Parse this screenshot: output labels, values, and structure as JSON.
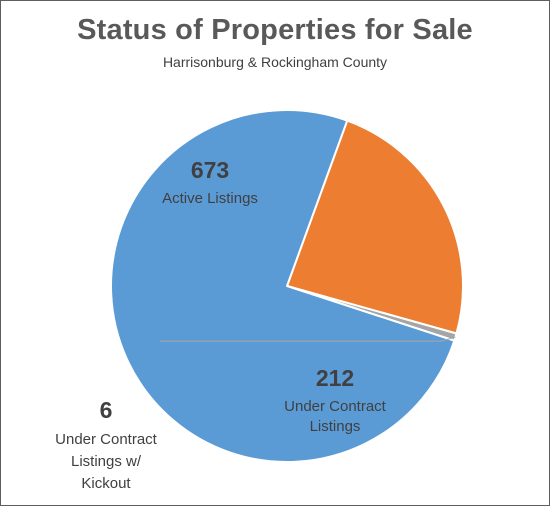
{
  "chart_data": {
    "type": "pie",
    "title": "Status of Properties for Sale",
    "subtitle": "Harrisonburg & Rockingham County",
    "start_angle_deg": 20,
    "direction": "clockwise",
    "slices": [
      {
        "label": "Under Contract Listings",
        "label_lines": [
          "Under Contract",
          "Listings"
        ],
        "value": 212,
        "color": "#ED7D31"
      },
      {
        "label": "Under Contract Listings w/ Kickout",
        "label_lines": [
          "Under Contract",
          "Listings w/",
          "Kickout"
        ],
        "value": 6,
        "color": "#A5A5A5"
      },
      {
        "label": "Active Listings",
        "label_lines": [
          "Active Listings"
        ],
        "value": 673,
        "color": "#5B9BD5"
      }
    ],
    "legend": "none",
    "data_labels": "value and category"
  }
}
